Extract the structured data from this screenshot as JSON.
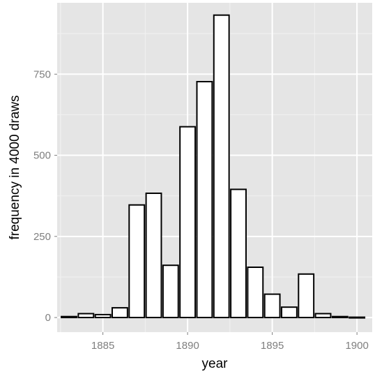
{
  "chart_data": {
    "type": "bar",
    "title": "",
    "xlabel": "year",
    "ylabel": "frequency in 4000 draws",
    "x_ticks": [
      1885,
      1890,
      1895,
      1900
    ],
    "y_ticks": [
      0,
      250,
      500,
      750
    ],
    "xlim": [
      1882.3,
      1900.9
    ],
    "ylim": [
      -45,
      970
    ],
    "grid": true,
    "legend": "none",
    "bars": [
      {
        "year": 1883,
        "value": 3
      },
      {
        "year": 1884,
        "value": 12
      },
      {
        "year": 1885,
        "value": 9
      },
      {
        "year": 1886,
        "value": 30
      },
      {
        "year": 1887,
        "value": 347
      },
      {
        "year": 1888,
        "value": 383
      },
      {
        "year": 1889,
        "value": 161
      },
      {
        "year": 1890,
        "value": 588
      },
      {
        "year": 1891,
        "value": 727
      },
      {
        "year": 1892,
        "value": 932
      },
      {
        "year": 1893,
        "value": 395
      },
      {
        "year": 1894,
        "value": 155
      },
      {
        "year": 1895,
        "value": 72
      },
      {
        "year": 1896,
        "value": 32
      },
      {
        "year": 1897,
        "value": 134
      },
      {
        "year": 1898,
        "value": 12
      },
      {
        "year": 1899,
        "value": 3
      },
      {
        "year": 1900,
        "value": 1
      }
    ],
    "colors": {
      "panel": "#e5e5e5",
      "grid_major": "#ffffff",
      "grid_minor": "#f2f2f2",
      "bar_fill": "#ffffff",
      "bar_stroke": "#000000",
      "tick_text": "#7f7f7f"
    }
  }
}
